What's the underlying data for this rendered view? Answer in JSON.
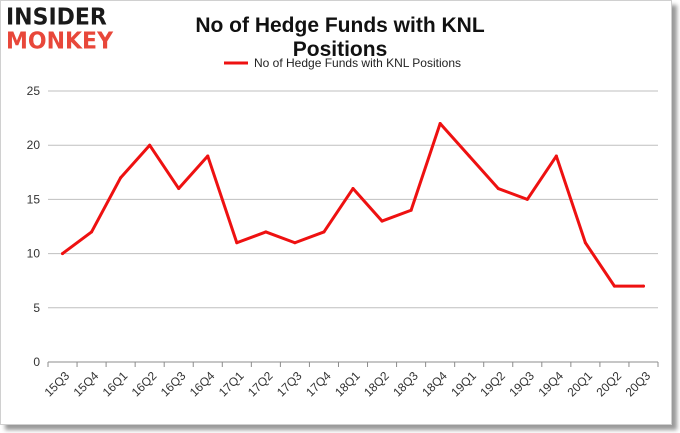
{
  "logo": {
    "line1": "INSIDER",
    "line2": "MONKEY"
  },
  "colors": {
    "series": "#ee1111",
    "grid": "#bfbfbf",
    "logo_dark": "#1a1a1a",
    "logo_red": "#e8473a"
  },
  "chart_data": {
    "type": "line",
    "title": "No of Hedge Funds with KNL Positions",
    "xlabel": "",
    "ylabel": "",
    "legend": "top-center",
    "grid": true,
    "ylim": [
      0,
      25
    ],
    "yticks": [
      0,
      5,
      10,
      15,
      20,
      25
    ],
    "categories": [
      "15Q3",
      "15Q4",
      "16Q1",
      "16Q2",
      "16Q3",
      "16Q4",
      "17Q1",
      "17Q2",
      "17Q3",
      "17Q4",
      "18Q1",
      "18Q2",
      "18Q3",
      "18Q4",
      "19Q1",
      "19Q2",
      "19Q3",
      "19Q4",
      "20Q1",
      "20Q2",
      "20Q3"
    ],
    "series": [
      {
        "name": "No of Hedge Funds with KNL Positions",
        "values": [
          10,
          12,
          17,
          20,
          16,
          19,
          11,
          12,
          11,
          12,
          16,
          13,
          14,
          22,
          19,
          16,
          15,
          19,
          11,
          7,
          7
        ]
      }
    ]
  }
}
